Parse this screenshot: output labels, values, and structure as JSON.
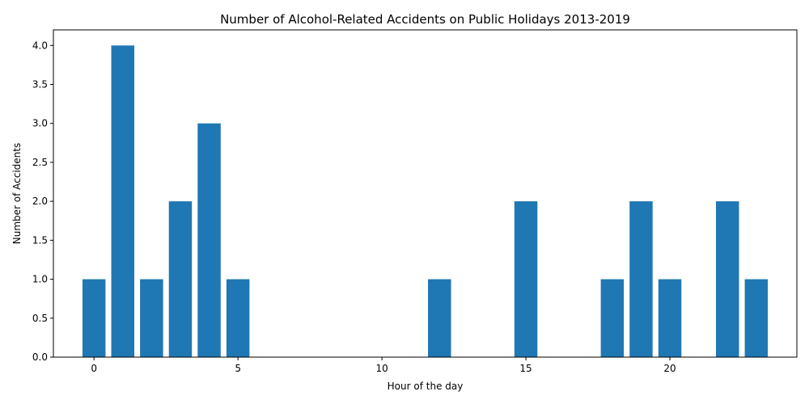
{
  "chart_data": {
    "type": "bar",
    "title": "Number of Alcohol-Related Accidents on Public Holidays 2013-2019",
    "xlabel": "Hour of the day",
    "ylabel": "Number of Accidents",
    "x": [
      0,
      1,
      2,
      3,
      4,
      5,
      12,
      15,
      18,
      19,
      20,
      22,
      23
    ],
    "values": [
      1,
      4,
      1,
      2,
      3,
      1,
      1,
      2,
      1,
      2,
      1,
      2,
      1
    ],
    "xlim": [
      -1.41,
      24.41
    ],
    "ylim": [
      0,
      4.2
    ],
    "xticks": [
      0,
      5,
      10,
      15,
      20
    ],
    "yticks": [
      0.0,
      0.5,
      1.0,
      1.5,
      2.0,
      2.5,
      3.0,
      3.5,
      4.0
    ],
    "bar_width": 0.8,
    "bar_color": "#1f77b4",
    "grid": false,
    "legend": "none"
  }
}
